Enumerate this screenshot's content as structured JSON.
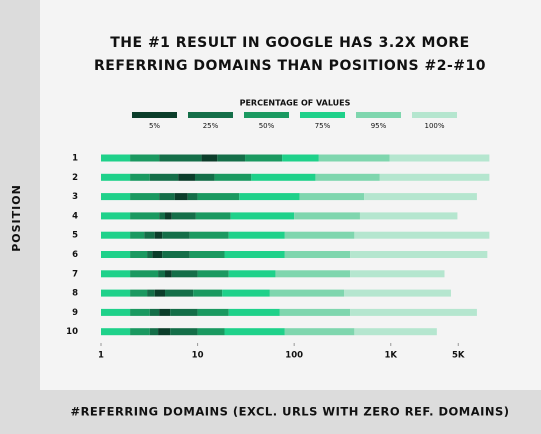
{
  "chart_data": {
    "type": "range_bar",
    "title": "THE #1 RESULT IN GOOGLE HAS 3.2X MORE REFERRING DOMAINS THAN POSITIONS #2-#10",
    "legend_title": "PERCENTAGE OF VALUES",
    "legend": [
      {
        "name": "5%",
        "color": "#0b3d2a"
      },
      {
        "name": "25%",
        "color": "#146e48"
      },
      {
        "name": "50%",
        "color": "#1a9960"
      },
      {
        "name": "75%",
        "color": "#1fd18a"
      },
      {
        "name": "95%",
        "color": "#7fd6ae"
      },
      {
        "name": "100%",
        "color": "#b5e6cf"
      }
    ],
    "segment_colors": [
      "#1fd18a",
      "#1a9960",
      "#146e48",
      "#0b3d2a",
      "#146e48",
      "#1a9960",
      "#1fd18a",
      "#7fd6ae",
      "#b5e6cf"
    ],
    "y_label": "POSITION",
    "x_label": "#REFERRING DOMAINS (EXCL. URLS WITH ZERO REF. DOMAINS)",
    "categories": [
      "1",
      "2",
      "3",
      "4",
      "5",
      "6",
      "7",
      "8",
      "9",
      "10"
    ],
    "values": [
      [
        1,
        2,
        4,
        11,
        16,
        31,
        75,
        180,
        970,
        10500
      ],
      [
        1,
        2,
        3.2,
        6.3,
        9.4,
        15,
        36,
        166,
        770,
        10500
      ],
      [
        1,
        2,
        4,
        5.8,
        7.9,
        10,
        27,
        114,
        530,
        7800
      ],
      [
        1,
        2,
        4,
        4.6,
        5.4,
        9.6,
        22,
        100,
        480,
        4900
      ],
      [
        1,
        2,
        2.8,
        3.6,
        4.3,
        8.3,
        21,
        80,
        420,
        10500
      ],
      [
        1,
        2,
        3,
        3.4,
        4.3,
        8.3,
        19,
        80,
        380,
        10000
      ],
      [
        1,
        2,
        3.9,
        4.6,
        5.4,
        10,
        21,
        64,
        380,
        3600
      ],
      [
        1,
        2,
        3,
        3.6,
        4.6,
        9,
        18,
        56,
        330,
        4200
      ],
      [
        1,
        2,
        3.2,
        4,
        5.2,
        10,
        21,
        71,
        380,
        7800
      ],
      [
        1,
        2,
        3.2,
        3.9,
        5.2,
        10,
        19,
        80,
        420,
        3000
      ]
    ],
    "xlim": [
      1,
      18000
    ],
    "xscale": "log",
    "xticks": [
      1,
      10,
      100,
      {
        "value": 1000,
        "label": "1K"
      },
      {
        "value": 5000,
        "label": "5K"
      }
    ]
  }
}
